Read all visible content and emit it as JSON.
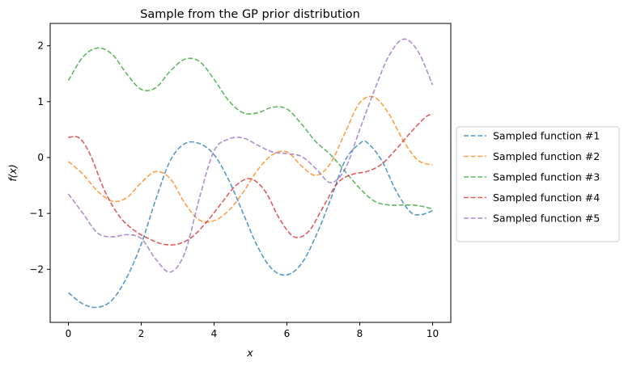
{
  "chart_data": {
    "type": "line",
    "title": "Sample from the GP prior distribution",
    "xlabel": "x",
    "ylabel": "f(x)",
    "xlim": [
      -0.5,
      10.5
    ],
    "ylim": [
      -2.95,
      2.4
    ],
    "x_ticks": [
      0,
      2,
      4,
      6,
      8,
      10
    ],
    "y_ticks": [
      -2,
      -1,
      0,
      1,
      2
    ],
    "x_tick_labels": [
      "0",
      "2",
      "4",
      "6",
      "8",
      "10"
    ],
    "y_tick_labels": [
      "−2",
      "−1",
      "0",
      "1",
      "2"
    ],
    "grid": false,
    "legend_position": "right-outside",
    "line_style": "dashed",
    "series": [
      {
        "name": "Sampled function #1",
        "color": "#1f77b4",
        "x": [
          0,
          0.4,
          0.8,
          1.2,
          1.6,
          2.0,
          2.4,
          2.8,
          3.2,
          3.6,
          4.0,
          4.4,
          4.8,
          5.2,
          5.6,
          6.0,
          6.4,
          6.8,
          7.2,
          7.6,
          8.0,
          8.2,
          8.6,
          9.0,
          9.4,
          9.7,
          10.0
        ],
        "values": [
          -2.42,
          -2.62,
          -2.68,
          -2.55,
          -2.15,
          -1.55,
          -0.75,
          -0.05,
          0.25,
          0.25,
          0.05,
          -0.4,
          -1.0,
          -1.6,
          -2.0,
          -2.1,
          -1.9,
          -1.4,
          -0.75,
          -0.05,
          0.25,
          0.27,
          -0.05,
          -0.6,
          -0.98,
          -1.02,
          -0.95
        ]
      },
      {
        "name": "Sampled function #2",
        "color": "#ff7f0e",
        "x": [
          0,
          0.4,
          0.8,
          1.2,
          1.6,
          2.0,
          2.4,
          2.8,
          3.2,
          3.6,
          4.0,
          4.4,
          4.8,
          5.2,
          5.6,
          6.0,
          6.4,
          6.8,
          7.2,
          7.6,
          8.0,
          8.4,
          8.8,
          9.2,
          9.6,
          10.0
        ],
        "values": [
          -0.07,
          -0.3,
          -0.6,
          -0.78,
          -0.72,
          -0.45,
          -0.25,
          -0.38,
          -0.82,
          -1.12,
          -1.13,
          -0.95,
          -0.62,
          -0.22,
          0.05,
          0.1,
          -0.15,
          -0.32,
          -0.1,
          0.45,
          0.98,
          1.08,
          0.78,
          0.3,
          -0.05,
          -0.13
        ]
      },
      {
        "name": "Sampled function #3",
        "color": "#2ca02c",
        "x": [
          0,
          0.4,
          0.8,
          1.2,
          1.6,
          2.0,
          2.4,
          2.8,
          3.2,
          3.6,
          4.0,
          4.4,
          4.8,
          5.2,
          5.6,
          6.0,
          6.4,
          6.8,
          7.2,
          7.6,
          8.0,
          8.4,
          8.8,
          9.2,
          9.6,
          10.0
        ],
        "values": [
          1.38,
          1.8,
          1.96,
          1.85,
          1.5,
          1.22,
          1.25,
          1.55,
          1.76,
          1.72,
          1.4,
          1.02,
          0.8,
          0.8,
          0.9,
          0.87,
          0.6,
          0.28,
          0.05,
          -0.25,
          -0.55,
          -0.78,
          -0.85,
          -0.85,
          -0.86,
          -0.92
        ]
      },
      {
        "name": "Sampled function #4",
        "color": "#d62728",
        "x": [
          0,
          0.3,
          0.6,
          1.0,
          1.4,
          1.8,
          2.2,
          2.6,
          3.0,
          3.4,
          3.8,
          4.2,
          4.6,
          5.0,
          5.4,
          5.8,
          6.2,
          6.6,
          7.0,
          7.4,
          7.8,
          8.2,
          8.6,
          9.0,
          9.4,
          9.8,
          10.0
        ],
        "values": [
          0.36,
          0.35,
          0.05,
          -0.6,
          -1.05,
          -1.3,
          -1.45,
          -1.55,
          -1.55,
          -1.42,
          -1.15,
          -0.82,
          -0.5,
          -0.38,
          -0.6,
          -1.1,
          -1.42,
          -1.32,
          -0.88,
          -0.45,
          -0.3,
          -0.25,
          -0.12,
          0.15,
          0.45,
          0.72,
          0.78
        ]
      },
      {
        "name": "Sampled function #5",
        "color": "#9467bd",
        "x": [
          0,
          0.4,
          0.8,
          1.2,
          1.6,
          2.0,
          2.4,
          2.8,
          3.2,
          3.6,
          4.0,
          4.4,
          4.8,
          5.2,
          5.6,
          6.0,
          6.4,
          6.8,
          7.2,
          7.6,
          8.0,
          8.4,
          8.8,
          9.2,
          9.6,
          10.0
        ],
        "values": [
          -0.65,
          -1.0,
          -1.35,
          -1.42,
          -1.38,
          -1.45,
          -1.82,
          -2.05,
          -1.7,
          -0.72,
          0.12,
          0.33,
          0.35,
          0.22,
          0.1,
          0.07,
          0.02,
          -0.2,
          -0.45,
          -0.2,
          0.5,
          1.2,
          1.82,
          2.12,
          1.9,
          1.3
        ]
      }
    ]
  }
}
